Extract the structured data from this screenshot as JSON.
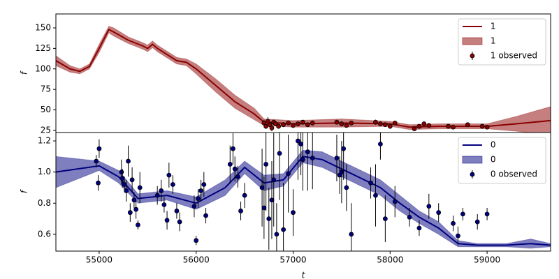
{
  "chart_data": [
    {
      "type": "line",
      "ylabel": "f",
      "xlim": [
        54554,
        59655
      ],
      "ylim": [
        22.4,
        167
      ],
      "yticks": [
        25,
        50,
        75,
        100,
        125,
        150
      ],
      "legend": "upper right",
      "x": [
        54554,
        54700,
        54800,
        54900,
        55000,
        55100,
        55150,
        55300,
        55450,
        55500,
        55550,
        55600,
        55800,
        55900,
        56000,
        56200,
        56400,
        56600,
        56700,
        57000,
        57500,
        58000,
        58200,
        58500,
        59000,
        59300,
        59655
      ],
      "series": [
        {
          "name": "1",
          "kind": "line",
          "color": "#8b0000",
          "values": [
            110,
            100,
            97,
            103,
            125,
            148,
            145,
            135,
            128,
            125,
            130,
            125,
            110,
            108,
            100,
            80,
            60,
            45,
            35,
            33,
            34,
            33,
            29,
            30,
            30,
            33,
            37
          ]
        },
        {
          "name": "1",
          "kind": "band",
          "color": "#8b0000",
          "alpha": 0.5,
          "lower": [
            104,
            96,
            94,
            100,
            120,
            144,
            140,
            131,
            124,
            121,
            126,
            121,
            106,
            104,
            94,
            72,
            52,
            38,
            31,
            29,
            29,
            30,
            26,
            27,
            27,
            24,
            20
          ],
          "upper": [
            116,
            104,
            100,
            106,
            130,
            152,
            150,
            139,
            132,
            129,
            134,
            129,
            114,
            112,
            106,
            88,
            68,
            52,
            39,
            37,
            39,
            36,
            32,
            33,
            33,
            42,
            54
          ]
        },
        {
          "name": "1 observed",
          "kind": "errorbar",
          "color": "#8b0000",
          "x": [
            56700,
            56720,
            56740,
            56760,
            56780,
            56800,
            56820,
            56850,
            56900,
            56950,
            57000,
            57050,
            57100,
            57150,
            57200,
            57450,
            57500,
            57550,
            57600,
            57850,
            57900,
            57950,
            58000,
            58050,
            58250,
            58300,
            58350,
            58400,
            58600,
            58650,
            58800,
            58950,
            59000
          ],
          "values": [
            34,
            30,
            36,
            32,
            28,
            35,
            33,
            30,
            32,
            34,
            31,
            33,
            35,
            32,
            34,
            35,
            33,
            31,
            34,
            35,
            33,
            32,
            30,
            34,
            27,
            30,
            33,
            31,
            30,
            29,
            32,
            30,
            29
          ],
          "errors": [
            4,
            3,
            5,
            3,
            4,
            3,
            2,
            3,
            3,
            2,
            3,
            2,
            3,
            2,
            3,
            2,
            3,
            2,
            2,
            3,
            2,
            2,
            3,
            2,
            3,
            2,
            2,
            2,
            2,
            2,
            2,
            2,
            2
          ]
        }
      ]
    },
    {
      "type": "line",
      "ylabel": "f",
      "xlabel": "t",
      "xlim": [
        54554,
        59655
      ],
      "ylim": [
        0.492,
        1.254
      ],
      "xticks": [
        55000,
        56000,
        57000,
        58000,
        59000
      ],
      "yticks": [
        0.6,
        0.8,
        {
          "value": 1,
          "label": "1.0"
        },
        1.2
      ],
      "legend": "upper right",
      "x": [
        54554,
        55000,
        55200,
        55400,
        55700,
        56000,
        56300,
        56500,
        56700,
        56900,
        57100,
        57300,
        57500,
        57700,
        57900,
        58100,
        58300,
        58500,
        58700,
        58900,
        59200,
        59450,
        59655
      ],
      "series": [
        {
          "name": "0",
          "kind": "line",
          "color": "#000080",
          "values": [
            1.0,
            1.04,
            0.97,
            0.83,
            0.85,
            0.8,
            0.9,
            1.03,
            0.93,
            0.95,
            1.1,
            1.08,
            1.02,
            0.96,
            0.9,
            0.8,
            0.71,
            0.64,
            0.54,
            0.53,
            0.53,
            0.54,
            0.53
          ]
        },
        {
          "name": "0",
          "kind": "band",
          "color": "#000080",
          "alpha": 0.5,
          "lower": [
            0.9,
            1.01,
            0.93,
            0.8,
            0.82,
            0.76,
            0.85,
            0.99,
            0.88,
            0.91,
            1.06,
            1.03,
            0.97,
            0.91,
            0.85,
            0.75,
            0.67,
            0.6,
            0.52,
            0.52,
            0.52,
            0.51,
            0.52
          ],
          "upper": [
            1.1,
            1.07,
            1.01,
            0.86,
            0.88,
            0.84,
            0.95,
            1.07,
            0.98,
            0.99,
            1.14,
            1.13,
            1.07,
            1.01,
            0.95,
            0.85,
            0.75,
            0.68,
            0.56,
            0.54,
            0.54,
            0.57,
            0.54
          ]
        },
        {
          "name": "0 observed",
          "kind": "errorbar",
          "color": "#000080",
          "x": [
            54970,
            54990,
            55000,
            55230,
            55240,
            55260,
            55280,
            55300,
            55320,
            55340,
            55360,
            55380,
            55400,
            55420,
            55600,
            55640,
            55670,
            55700,
            55720,
            55760,
            55800,
            55830,
            55980,
            56000,
            56020,
            56050,
            56080,
            56100,
            56350,
            56380,
            56400,
            56430,
            56460,
            56500,
            56680,
            56700,
            56720,
            56750,
            56780,
            56800,
            56830,
            56860,
            56900,
            56950,
            57000,
            57050,
            57080,
            57100,
            57150,
            57200,
            57450,
            57480,
            57500,
            57520,
            57550,
            57600,
            57800,
            57850,
            57900,
            57950,
            58050,
            58200,
            58300,
            58400,
            58500,
            58650,
            58700,
            58750,
            58900,
            59000
          ],
          "values": [
            1.07,
            0.93,
            1.15,
            1.0,
            0.96,
            0.92,
            0.88,
            1.07,
            0.74,
            0.95,
            0.82,
            0.76,
            0.66,
            0.9,
            0.85,
            0.88,
            0.79,
            0.69,
            0.98,
            0.92,
            0.75,
            0.68,
            0.78,
            0.56,
            0.83,
            0.88,
            0.92,
            0.72,
            1.05,
            1.15,
            1.02,
            0.97,
            0.75,
            0.85,
            0.9,
            0.77,
            1.05,
            0.7,
            0.82,
            0.95,
            0.6,
            1.12,
            0.63,
            0.99,
            0.74,
            1.2,
            1.18,
            1.08,
            1.13,
            1.09,
            1.09,
            0.98,
            1.0,
            1.15,
            0.9,
            0.6,
            0.93,
            0.85,
            1.18,
            0.7,
            0.81,
            0.71,
            0.64,
            0.78,
            0.74,
            0.67,
            0.59,
            0.73,
            0.68,
            0.73
          ],
          "errors": [
            0.04,
            0.05,
            0.06,
            0.08,
            0.06,
            0.05,
            0.07,
            0.1,
            0.06,
            0.08,
            0.05,
            0.06,
            0.03,
            0.1,
            0.06,
            0.07,
            0.05,
            0.06,
            0.08,
            0.06,
            0.05,
            0.06,
            0.07,
            0.03,
            0.06,
            0.07,
            0.08,
            0.05,
            0.12,
            0.1,
            0.08,
            0.07,
            0.06,
            0.08,
            0.25,
            0.2,
            0.3,
            0.2,
            0.25,
            0.3,
            0.2,
            0.3,
            0.3,
            0.25,
            0.15,
            0.25,
            0.2,
            0.2,
            0.25,
            0.2,
            0.15,
            0.12,
            0.2,
            0.2,
            0.15,
            0.2,
            0.1,
            0.2,
            0.1,
            0.15,
            0.1,
            0.06,
            0.05,
            0.08,
            0.06,
            0.05,
            0.06,
            0.04,
            0.05,
            0.04
          ]
        }
      ]
    }
  ]
}
